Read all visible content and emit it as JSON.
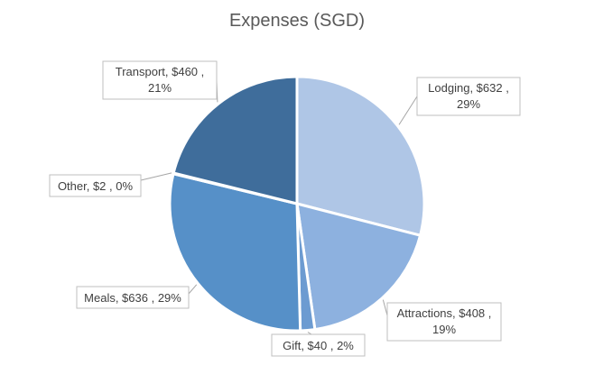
{
  "chart_data": {
    "type": "pie",
    "title": "Expenses (SGD)",
    "slices": [
      {
        "name": "Lodging",
        "value": 632,
        "percent": "29%",
        "color": "#afc6e6",
        "label_line1": "Lodging,  $632 ,",
        "label_line2": "29%"
      },
      {
        "name": "Attractions",
        "value": 408,
        "percent": "19%",
        "color": "#8db1df",
        "label_line1": "Attractions,  $408 ,",
        "label_line2": "19%"
      },
      {
        "name": "Gift",
        "value": 40,
        "percent": "2%",
        "color": "#6c9bd1",
        "label_line1": "Gift,  $40 , 2%",
        "label_line2": ""
      },
      {
        "name": "Meals",
        "value": 636,
        "percent": "29%",
        "color": "#5690c8",
        "label_line1": "Meals,  $636 , 29%",
        "label_line2": ""
      },
      {
        "name": "Other",
        "value": 2,
        "percent": "0%",
        "color": "#4a7fb6",
        "label_line1": "Other,  $2 , 0%",
        "label_line2": ""
      },
      {
        "name": "Transport",
        "value": 460,
        "percent": "21%",
        "color": "#3f6d9b",
        "label_line1": "Transport,  $460 ,",
        "label_line2": "21%"
      }
    ]
  }
}
